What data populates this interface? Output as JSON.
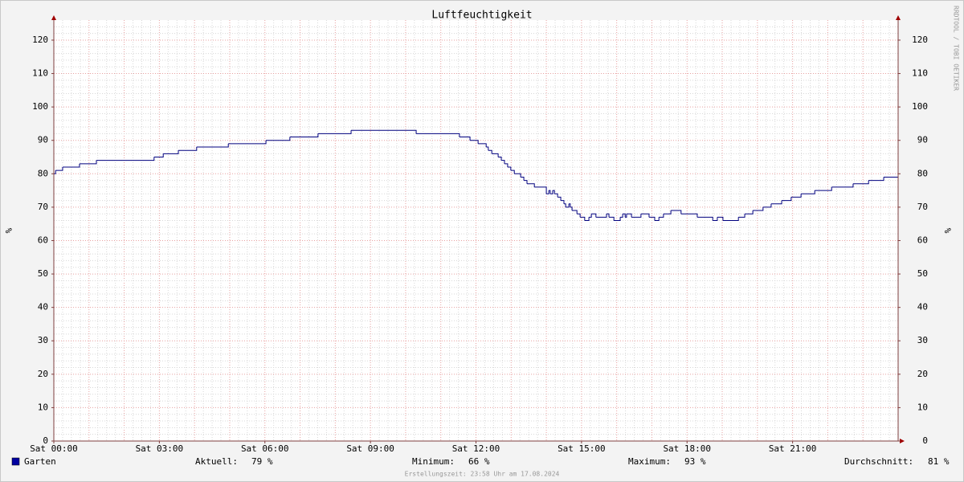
{
  "chart_data": {
    "type": "step",
    "title": "Luftfeuchtigkeit",
    "y_label": "%",
    "watermark": "RRDTOOL / TOBI OETIKER",
    "xlim": [
      0,
      24
    ],
    "xticks": [
      {
        "value": 0,
        "label": "Sat 00:00"
      },
      {
        "value": 3,
        "label": "Sat 03:00"
      },
      {
        "value": 6,
        "label": "Sat 06:00"
      },
      {
        "value": 9,
        "label": "Sat 09:00"
      },
      {
        "value": 12,
        "label": "Sat 12:00"
      },
      {
        "value": 15,
        "label": "Sat 15:00"
      },
      {
        "value": 18,
        "label": "Sat 18:00"
      },
      {
        "value": 21,
        "label": "Sat 21:00"
      }
    ],
    "ylim": [
      0,
      126
    ],
    "yticks": [
      0,
      10,
      20,
      30,
      40,
      50,
      60,
      70,
      80,
      90,
      100,
      110,
      120
    ],
    "grid": true,
    "x": [
      0.0,
      0.05,
      0.25,
      0.73,
      1.21,
      2.85,
      3.11,
      3.54,
      4.06,
      4.96,
      6.03,
      6.71,
      7.51,
      8.45,
      10.3,
      11.53,
      11.83,
      12.06,
      12.29,
      12.35,
      12.45,
      12.63,
      12.72,
      12.81,
      12.9,
      12.99,
      13.09,
      13.27,
      13.36,
      13.45,
      13.66,
      14.0,
      14.07,
      14.11,
      14.18,
      14.23,
      14.32,
      14.41,
      14.5,
      14.55,
      14.64,
      14.68,
      14.73,
      14.87,
      14.96,
      15.09,
      15.21,
      15.28,
      15.41,
      15.71,
      15.78,
      15.92,
      16.1,
      16.17,
      16.24,
      16.28,
      16.42,
      16.69,
      16.92,
      17.08,
      17.2,
      17.33,
      17.54,
      17.83,
      18.29,
      18.73,
      18.86,
      19.02,
      19.46,
      19.64,
      19.87,
      20.16,
      20.39,
      20.69,
      20.96,
      21.24,
      21.63,
      22.11,
      22.72,
      23.16,
      23.59
    ],
    "series": [
      {
        "name": "Garten",
        "color": "#00007f",
        "values": [
          80,
          81,
          82,
          83,
          84,
          85,
          86,
          87,
          88,
          89,
          90,
          91,
          92,
          93,
          92,
          91,
          90,
          89,
          88,
          87,
          86,
          85,
          84,
          83,
          82,
          81,
          80,
          79,
          78,
          77,
          76,
          74,
          75,
          74,
          75,
          74,
          73,
          72,
          71,
          70,
          71,
          70,
          69,
          68,
          67,
          66,
          67,
          68,
          67,
          68,
          67,
          66,
          67,
          68,
          67,
          68,
          67,
          68,
          67,
          66,
          67,
          68,
          69,
          68,
          67,
          66,
          67,
          66,
          67,
          68,
          69,
          70,
          71,
          72,
          73,
          74,
          75,
          76,
          77,
          78,
          79
        ]
      }
    ],
    "legend_color": "#0000a0",
    "stats": [
      {
        "label": "Aktuell:",
        "value": "79 %"
      },
      {
        "label": "Minimum:",
        "value": "66 %"
      },
      {
        "label": "Maximum:",
        "value": "93 %"
      },
      {
        "label": "Durchschnitt:",
        "value": "81 %"
      }
    ],
    "footer": "Erstellungszeit: 23:58 Uhr am 17.08.2024"
  }
}
